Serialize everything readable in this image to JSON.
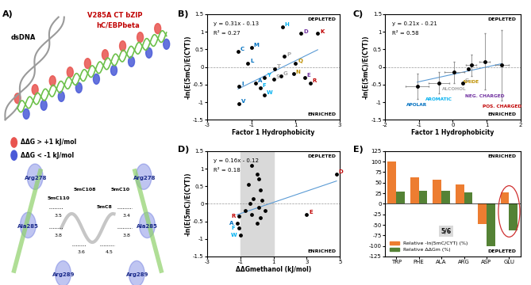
{
  "panel_labels": [
    "A)",
    "B)",
    "C)",
    "D)",
    "E)"
  ],
  "diagram": {
    "top_labels": [
      "dsDNA"
    ],
    "protein_label": [
      "V285A CT bZIP",
      "hC/EBPbeta"
    ],
    "legend": [
      {
        "label": "ΔΔG > +1 kJ/mol",
        "color": "#e8544f"
      },
      {
        "label": "ΔΔG < -1 kJ/mol",
        "color": "#4a5ad8"
      }
    ],
    "residue_labels": [
      "Arg278",
      "Arg278",
      "Ala285",
      "Ala285",
      "Arg289",
      "Arg289",
      "5mC110",
      "5mC108",
      "5mC8",
      "5mC10"
    ],
    "distances": [
      "3.5",
      "3.8",
      "3.6",
      "4.5",
      "3.4",
      "3.8"
    ]
  },
  "chart_data": [
    {
      "type": "scatter",
      "xlabel": "Factor 1 Hydrophobicity",
      "ylabel": "-ln(E(5mC)/E(CYT))",
      "x": [
        -1.6,
        -1.0,
        -1.15,
        -1.55,
        -1.55,
        -0.8,
        -0.6,
        -0.4,
        -0.4,
        0.4,
        0.05,
        0.0,
        0.35,
        0.5,
        1.0,
        0.9,
        1.25,
        1.4,
        2.0,
        1.65
      ],
      "values": [
        0.45,
        0.55,
        0.1,
        -0.55,
        -1.05,
        -0.45,
        -0.6,
        -0.3,
        -0.8,
        1.15,
        -0.05,
        -0.35,
        -0.25,
        0.3,
        0.1,
        -0.2,
        0.95,
        -0.3,
        0.95,
        -0.45
      ],
      "point_labels": [
        "C",
        "M",
        "L",
        "I",
        "V",
        "A",
        "F",
        "Y",
        "W",
        "H",
        "T",
        "S",
        "G",
        "P",
        "Q",
        "N",
        "D",
        "E",
        "K",
        "R"
      ],
      "colors": [
        "#0070C0",
        "#0070C0",
        "#0070C0",
        "#0070C0",
        "#0070C0",
        "#0070C0",
        "#00B0F0",
        "#00B0F0",
        "#00B0F0",
        "#00B0F0",
        "#A6A6A6",
        "#A6A6A6",
        "#A6A6A6",
        "#A6A6A6",
        "#BF9000",
        "#BF9000",
        "#7030A0",
        "#7030A0",
        "#C00000",
        "#C00000"
      ],
      "xlim": [
        -3,
        3
      ],
      "xticks": [
        -3,
        -1,
        1,
        3
      ],
      "ylim": [
        -1.5,
        1.5
      ],
      "yticks": [
        -1.5,
        -1,
        -0.5,
        0,
        0.5,
        1,
        1.5
      ],
      "fit": {
        "slope": 0.31,
        "intercept": -0.13
      },
      "equation": "y = 0.31x - 0.13",
      "r_squared": "R² = 0.27",
      "upper_note": "DEPLETED",
      "lower_note": "ENRICHED"
    },
    {
      "type": "errorbar",
      "xlabel": "Factor 1 Hydrophobicity",
      "ylabel": "-ln(E(5mC)/E(CYT))",
      "x": [
        -1.05,
        -0.4,
        0.05,
        0.55,
        0.95,
        1.45,
        0.3,
        0.45
      ],
      "values": [
        -0.55,
        -0.45,
        -0.15,
        0.05,
        0.15,
        0.05,
        -0.45,
        -0.05
      ],
      "xerr": [
        0.35,
        0.3,
        0.3,
        0.15,
        0.15,
        0.2,
        0,
        0
      ],
      "yerr": [
        0.35,
        0.3,
        0.3,
        0.3,
        0.8,
        1.0,
        0,
        0
      ],
      "point_labels": [
        "APOLAR",
        "AROMATIC",
        "ALCOHOL",
        "AMIDE",
        "NEG. CHARGED",
        "POS. CHARGED",
        "G",
        "P"
      ],
      "colors": [
        "#0070C0",
        "#00B0F0",
        "#A6A6A6",
        "#BF9000",
        "#7030A0",
        "#C00000",
        "#A6A6A6",
        "#A6A6A6"
      ],
      "xlim": [
        -2,
        2
      ],
      "xticks": [
        -2,
        -1,
        0,
        1,
        2
      ],
      "ylim": [
        -1.5,
        1.5
      ],
      "yticks": [
        -1.5,
        -1,
        -0.5,
        0,
        0.5,
        1,
        1.5
      ],
      "fit": {
        "slope": 0.21,
        "intercept": -0.21
      },
      "equation": "y = 0.21x - 0.21",
      "r_squared": "R² = 0.58",
      "upper_note": "DEPLETED",
      "lower_note": "ENRICHED"
    },
    {
      "type": "scatter",
      "xlabel": "ΔΔGmethanol (kJ/mol)",
      "ylabel": "-ln(E(5mC)/E(CYT))",
      "x": [
        -0.3,
        0.0,
        0.1,
        -0.5,
        0.2,
        -0.2,
        0.3,
        -0.4,
        0.1,
        0.5,
        -0.3,
        0.2,
        -0.7,
        0.0,
        -1.1,
        -1.2,
        -1.1,
        -1.0,
        4.8,
        3.0
      ],
      "values": [
        1.1,
        0.85,
        0.7,
        0.55,
        0.4,
        0.15,
        0.1,
        0.0,
        -0.1,
        -0.2,
        -0.3,
        -0.4,
        -0.2,
        -0.55,
        -0.35,
        -0.55,
        -0.7,
        -0.9,
        0.85,
        -0.3
      ],
      "point_labels": [
        null,
        null,
        null,
        null,
        null,
        null,
        null,
        null,
        null,
        null,
        null,
        null,
        null,
        null,
        "R",
        "A",
        "F",
        "W",
        "D",
        "E"
      ],
      "colors": [
        "#000000",
        "#000000",
        "#000000",
        "#000000",
        "#000000",
        "#000000",
        "#000000",
        "#000000",
        "#000000",
        "#000000",
        "#000000",
        "#000000",
        "#000000",
        "#000000",
        "#C00000",
        "#0070C0",
        "#00B0F0",
        "#00B0F0",
        "#C00000",
        "#C00000"
      ],
      "band": [
        -1,
        1
      ],
      "xlim": [
        -3,
        5
      ],
      "xticks": [
        -3,
        -1,
        1,
        3,
        5
      ],
      "ylim": [
        -1.5,
        1.5
      ],
      "yticks": [
        -1.5,
        -1,
        -0.5,
        0,
        0.5,
        1,
        1.5
      ],
      "fit": {
        "slope": 0.16,
        "intercept": -0.12
      },
      "equation": "y = 0.16x - 0.12",
      "r_squared": "R² = 0.18",
      "upper_note": "DEPLETED",
      "lower_note": "ENRICHED"
    },
    {
      "type": "bar",
      "categories": [
        "TRP",
        "PHE",
        "ALA",
        "ARG",
        "ASP",
        "GLU"
      ],
      "series": [
        {
          "name": "Relative -ln(5mC/CYT) (%)",
          "color": "#ED7D31",
          "values": [
            100,
            63,
            57,
            46,
            -48,
            27
          ]
        },
        {
          "name": "Relative ΔΔGm (%)",
          "color": "#548235",
          "values": [
            28,
            30,
            30,
            27,
            -100,
            -63
          ]
        }
      ],
      "ylim": [
        -125,
        125
      ],
      "yticks": [
        -125,
        -100,
        -75,
        -50,
        -25,
        0,
        25,
        50,
        75,
        100,
        125
      ],
      "legend": "lower left",
      "upper_note": "ENRICHED",
      "lower_note": "DEPLETED",
      "box_note": "5/6"
    }
  ]
}
